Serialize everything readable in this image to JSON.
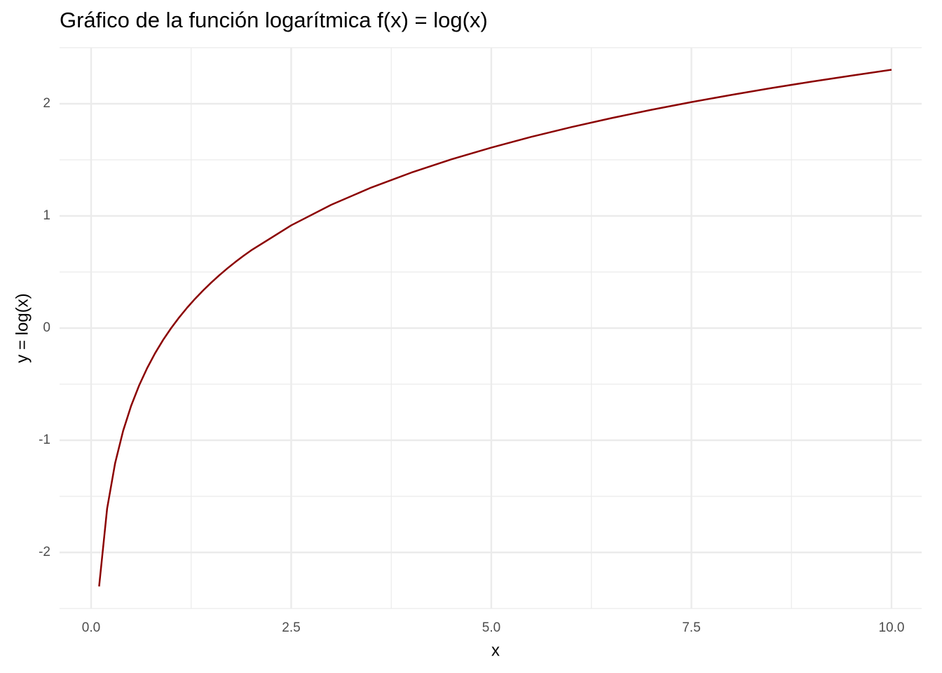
{
  "chart_data": {
    "type": "line",
    "title": "Gráfico de la función logarítmica f(x) = log(x)",
    "x_label": "x",
    "y_label": "y = log(x)",
    "x": [
      0.1,
      0.2,
      0.3,
      0.4,
      0.5,
      0.6,
      0.7,
      0.8,
      0.9,
      1.0,
      1.1,
      1.2,
      1.3,
      1.4,
      1.5,
      1.6,
      1.7,
      1.8,
      1.9,
      2.0,
      2.5,
      3.0,
      3.5,
      4.0,
      4.5,
      5.0,
      5.5,
      6.0,
      6.5,
      7.0,
      7.5,
      8.0,
      8.5,
      9.0,
      9.5,
      10.0
    ],
    "values": [
      -2.303,
      -1.609,
      -1.204,
      -0.916,
      -0.693,
      -0.511,
      -0.357,
      -0.223,
      -0.105,
      0,
      0.095,
      0.182,
      0.262,
      0.336,
      0.405,
      0.47,
      0.531,
      0.588,
      0.642,
      0.693,
      0.916,
      1.099,
      1.253,
      1.386,
      1.504,
      1.609,
      1.705,
      1.792,
      1.872,
      1.946,
      2.015,
      2.079,
      2.14,
      2.197,
      2.251,
      2.303
    ],
    "color": "#8b0000",
    "xlim": [
      -0.394,
      10.377
    ],
    "ylim": [
      -2.5,
      2.5
    ],
    "xticks": [
      {
        "value": 0,
        "label": "0.0"
      },
      2.5,
      {
        "value": 5,
        "label": "5.0"
      },
      7.5,
      {
        "value": 10,
        "label": "10.0"
      }
    ],
    "yticks": [
      -2,
      -1,
      0,
      1,
      2
    ],
    "x_minor_ticks": [
      1.25,
      3.75,
      6.25,
      8.75
    ],
    "y_minor_ticks": [
      -2.5,
      -1.5,
      -0.5,
      0.5,
      1.5,
      2.5
    ],
    "grid": true
  }
}
